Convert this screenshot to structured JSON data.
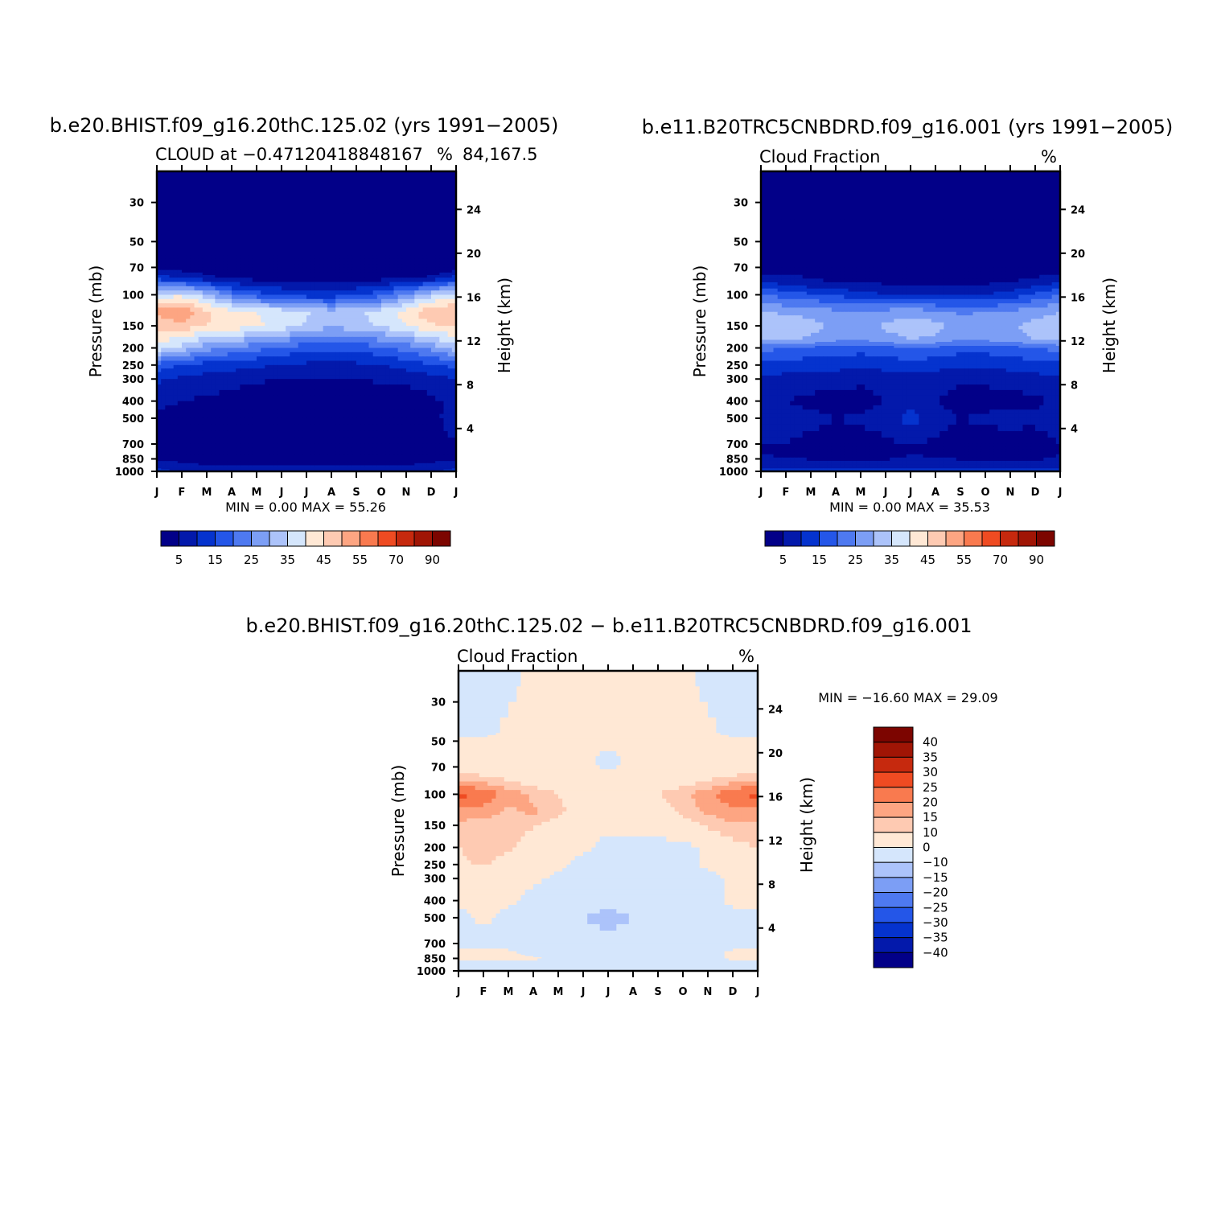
{
  "chart_data": [
    {
      "type": "heatmap",
      "id": "model1",
      "title": "b.e20.BHIST.f09_g16.20thC.125.02 (yrs 1991−2005)",
      "left_label": "CLOUD at −0.47120418848167",
      "right_label": "%",
      "overlap_label": "84,167.5",
      "ylabel": "Pressure (mb)",
      "ylabel_right": "Height (km)",
      "x_categories": [
        "J",
        "F",
        "M",
        "A",
        "M",
        "J",
        "J",
        "A",
        "S",
        "O",
        "N",
        "D",
        "J"
      ],
      "y_ticks": [
        30,
        50,
        70,
        100,
        150,
        200,
        250,
        300,
        400,
        500,
        700,
        850,
        1000
      ],
      "y_right_ticks": [
        24,
        20,
        16,
        12,
        8,
        4
      ],
      "ylim": [
        20,
        1000
      ],
      "stats": "MIN =    0.00  MAX =   55.26",
      "colorbar": {
        "labels": [
          "5",
          "15",
          "25",
          "35",
          "45",
          "55",
          "70",
          "90"
        ]
      },
      "field_rows": [
        {
          "p": 20,
          "v": [
            0,
            0,
            0,
            0,
            0,
            0,
            0,
            0,
            0,
            0,
            0,
            0,
            0
          ]
        },
        {
          "p": 60,
          "v": [
            0,
            0,
            0,
            0,
            0,
            0,
            0,
            0,
            0,
            0,
            0,
            0,
            0
          ]
        },
        {
          "p": 70,
          "v": [
            2,
            2,
            2,
            0,
            0,
            0,
            0,
            0,
            0,
            0,
            0,
            0,
            2
          ]
        },
        {
          "p": 80,
          "v": [
            12,
            10,
            6,
            4,
            3,
            3,
            3,
            3,
            3,
            3,
            4,
            6,
            12
          ]
        },
        {
          "p": 100,
          "v": [
            38,
            38,
            32,
            22,
            17,
            14,
            12,
            12,
            14,
            18,
            26,
            33,
            38
          ]
        },
        {
          "p": 125,
          "v": [
            52,
            55,
            46,
            42,
            40,
            38,
            36,
            32,
            34,
            37,
            42,
            50,
            50
          ]
        },
        {
          "p": 150,
          "v": [
            46,
            48,
            45,
            43,
            41,
            38,
            34,
            31,
            33,
            36,
            40,
            44,
            46
          ]
        },
        {
          "p": 200,
          "v": [
            38,
            33,
            27,
            24,
            22,
            19,
            17,
            16,
            17,
            19,
            22,
            27,
            33
          ]
        },
        {
          "p": 250,
          "v": [
            18,
            15,
            13,
            12,
            11,
            10,
            9,
            9,
            9,
            10,
            12,
            14,
            17
          ]
        },
        {
          "p": 300,
          "v": [
            11,
            9,
            8,
            7,
            6,
            5,
            5,
            5,
            5,
            6,
            7,
            8,
            10
          ]
        },
        {
          "p": 400,
          "v": [
            6,
            5,
            4,
            3,
            0.5,
            0.5,
            0.5,
            0.5,
            0.5,
            0.5,
            0.5,
            4,
            6
          ]
        },
        {
          "p": 500,
          "v": [
            4,
            3,
            5,
            3,
            2,
            0.5,
            0.5,
            0.5,
            0.5,
            0.5,
            0.5,
            3,
            8
          ]
        },
        {
          "p": 700,
          "v": [
            4,
            3,
            3,
            1,
            0.5,
            0.5,
            0.5,
            0.5,
            0.5,
            0.5,
            0.5,
            4,
            4
          ]
        },
        {
          "p": 850,
          "v": [
            4,
            4,
            3,
            3,
            2,
            1,
            1,
            1,
            1,
            2,
            3,
            4,
            4
          ]
        },
        {
          "p": 950,
          "v": [
            10,
            6,
            6,
            6,
            6,
            6,
            6,
            6,
            6,
            6,
            6,
            6,
            10
          ]
        },
        {
          "p": 1000,
          "v": [
            12,
            10,
            10,
            10,
            10,
            10,
            10,
            10,
            10,
            10,
            10,
            10,
            12
          ]
        }
      ]
    },
    {
      "type": "heatmap",
      "id": "model2",
      "title": "b.e11.B20TRC5CNBDRD.f09_g16.001 (yrs 1991−2005)",
      "left_label": "Cloud Fraction",
      "right_label": "%",
      "ylabel": "Pressure (mb)",
      "ylabel_right": "Height (km)",
      "x_categories": [
        "J",
        "F",
        "M",
        "A",
        "M",
        "J",
        "J",
        "A",
        "S",
        "O",
        "N",
        "D",
        "J"
      ],
      "y_ticks": [
        30,
        50,
        70,
        100,
        150,
        200,
        250,
        300,
        400,
        500,
        700,
        850,
        1000
      ],
      "y_right_ticks": [
        24,
        20,
        16,
        12,
        8,
        4
      ],
      "ylim": [
        20,
        1000
      ],
      "stats": "MIN =    0.00  MAX =   35.53",
      "colorbar": {
        "labels": [
          "5",
          "15",
          "25",
          "35",
          "45",
          "55",
          "70",
          "90"
        ]
      },
      "field_rows": [
        {
          "p": 20,
          "v": [
            0,
            0,
            0,
            0,
            0,
            0,
            0,
            0,
            0,
            0,
            0,
            0,
            0
          ]
        },
        {
          "p": 70,
          "v": [
            2,
            2,
            2,
            0,
            0,
            0,
            0,
            0,
            0,
            0,
            0,
            1,
            2
          ]
        },
        {
          "p": 85,
          "v": [
            10,
            8,
            6,
            5,
            5,
            4,
            4,
            4,
            4,
            4,
            5,
            7,
            10
          ]
        },
        {
          "p": 100,
          "v": [
            20,
            18,
            16,
            14,
            12,
            10,
            10,
            10,
            10,
            10,
            12,
            16,
            20
          ]
        },
        {
          "p": 125,
          "v": [
            30,
            29,
            28,
            26,
            25,
            27,
            28,
            26,
            24,
            25,
            26,
            28,
            30
          ]
        },
        {
          "p": 150,
          "v": [
            33,
            35,
            32,
            29,
            28,
            31,
            33,
            32,
            28,
            29,
            29,
            32,
            33
          ]
        },
        {
          "p": 180,
          "v": [
            30,
            31,
            29,
            26,
            25,
            28,
            30,
            29,
            25,
            26,
            27,
            30,
            31
          ]
        },
        {
          "p": 200,
          "v": [
            22,
            20,
            19,
            18,
            17,
            18,
            20,
            19,
            17,
            17,
            18,
            20,
            22
          ]
        },
        {
          "p": 250,
          "v": [
            14,
            13,
            12,
            12,
            11,
            12,
            13,
            12,
            11,
            11,
            12,
            13,
            14
          ]
        },
        {
          "p": 300,
          "v": [
            9,
            8,
            7,
            7,
            6,
            7,
            7,
            7,
            6,
            6,
            7,
            8,
            9
          ]
        },
        {
          "p": 400,
          "v": [
            6,
            5,
            4,
            3,
            3,
            5,
            6,
            5,
            3,
            3,
            3,
            4,
            6
          ]
        },
        {
          "p": 500,
          "v": [
            8,
            6,
            6,
            5,
            6,
            7,
            13,
            7,
            5,
            6,
            7,
            6,
            8
          ]
        },
        {
          "p": 700,
          "v": [
            5,
            5,
            4,
            3,
            3,
            4,
            5,
            4,
            3,
            3,
            2,
            3,
            5
          ]
        },
        {
          "p": 800,
          "v": [
            5,
            4,
            3,
            2,
            1,
            3,
            5,
            4,
            3,
            2,
            1,
            2,
            5
          ]
        },
        {
          "p": 950,
          "v": [
            8,
            8,
            8,
            8,
            8,
            8,
            8,
            8,
            8,
            8,
            8,
            8,
            8
          ]
        },
        {
          "p": 1000,
          "v": [
            14,
            14,
            14,
            14,
            14,
            14,
            14,
            14,
            14,
            14,
            14,
            14,
            14
          ]
        }
      ]
    },
    {
      "type": "heatmap",
      "id": "diff",
      "title": "b.e20.BHIST.f09_g16.20thC.125.02 − b.e11.B20TRC5CNBDRD.f09_g16.001",
      "left_label": "Cloud Fraction",
      "right_label": "%",
      "ylabel": "Pressure (mb)",
      "ylabel_right": "Height (km)",
      "x_categories": [
        "J",
        "F",
        "M",
        "A",
        "M",
        "J",
        "J",
        "A",
        "S",
        "O",
        "N",
        "D",
        "J"
      ],
      "y_ticks": [
        30,
        50,
        70,
        100,
        150,
        200,
        250,
        300,
        400,
        500,
        700,
        850,
        1000
      ],
      "y_right_ticks": [
        24,
        20,
        16,
        12,
        8,
        4
      ],
      "ylim": [
        20,
        1000
      ],
      "stats": "MIN = −16.60  MAX =   29.09",
      "colorbar": {
        "labels": [
          "40",
          "35",
          "30",
          "25",
          "20",
          "15",
          "10",
          "0",
          "−10",
          "−15",
          "−20",
          "−25",
          "−30",
          "−35",
          "−40"
        ]
      },
      "field_rows": [
        {
          "p": 20,
          "v": [
            -3,
            -3,
            -3,
            2,
            2,
            2,
            2,
            2,
            2,
            2,
            -3,
            -3,
            -3
          ]
        },
        {
          "p": 45,
          "v": [
            -3,
            -2,
            2,
            2,
            2,
            2,
            2,
            2,
            2,
            2,
            2,
            -2,
            -3
          ]
        },
        {
          "p": 50,
          "v": [
            2,
            2,
            2,
            2,
            2,
            2,
            2,
            2,
            2,
            2,
            2,
            2,
            2
          ]
        },
        {
          "p": 65,
          "v": [
            2,
            2,
            2,
            2,
            2,
            2,
            -3,
            2,
            2,
            2,
            2,
            2,
            2
          ]
        },
        {
          "p": 80,
          "v": [
            12,
            11,
            8,
            5,
            3,
            2,
            2,
            2,
            3,
            5,
            8,
            11,
            12
          ]
        },
        {
          "p": 100,
          "v": [
            27,
            24,
            18,
            14,
            10,
            5,
            2,
            5,
            10,
            14,
            18,
            24,
            27
          ]
        },
        {
          "p": 125,
          "v": [
            18,
            18,
            14,
            16,
            12,
            6,
            3,
            3,
            6,
            12,
            16,
            19,
            18
          ]
        },
        {
          "p": 150,
          "v": [
            14,
            12,
            13,
            11,
            6,
            4,
            2,
            2,
            4,
            7,
            11,
            14,
            14
          ]
        },
        {
          "p": 200,
          "v": [
            10,
            13,
            11,
            6,
            3,
            2,
            -3,
            -3,
            -3,
            -3,
            2,
            8,
            10
          ]
        },
        {
          "p": 250,
          "v": [
            8,
            11,
            7,
            4,
            2,
            -3,
            -3,
            -3,
            -3,
            -3,
            2,
            4,
            8
          ]
        },
        {
          "p": 300,
          "v": [
            6,
            3,
            2,
            2,
            -2,
            -3,
            -3,
            -3,
            -3,
            -3,
            -3,
            2,
            6
          ]
        },
        {
          "p": 400,
          "v": [
            2,
            2,
            2,
            -3,
            -3,
            -3,
            -3,
            -3,
            -3,
            -3,
            -3,
            2,
            2
          ]
        },
        {
          "p": 500,
          "v": [
            -3,
            2,
            -3,
            -3,
            -3,
            -10,
            -16,
            -10,
            -3,
            -3,
            -3,
            -3,
            -3
          ]
        },
        {
          "p": 700,
          "v": [
            -3,
            -3,
            -3,
            -3,
            -3,
            -3,
            -3,
            -3,
            -3,
            -3,
            -3,
            -3,
            -3
          ]
        },
        {
          "p": 800,
          "v": [
            2,
            2,
            2,
            -3,
            -3,
            -3,
            -3,
            -3,
            -3,
            -3,
            -3,
            2,
            2
          ]
        },
        {
          "p": 850,
          "v": [
            2,
            2,
            2,
            2,
            -3,
            -3,
            -3,
            -3,
            -3,
            -3,
            -3,
            2,
            2
          ]
        },
        {
          "p": 950,
          "v": [
            -8,
            -6,
            -6,
            -6,
            -6,
            -6,
            -6,
            -6,
            -6,
            -6,
            -6,
            -6,
            -8
          ]
        },
        {
          "p": 1000,
          "v": [
            -10,
            -10,
            -10,
            -10,
            -10,
            -10,
            -10,
            -10,
            -10,
            -10,
            -10,
            -10,
            -10
          ]
        }
      ]
    }
  ],
  "colors": {
    "abs_levels": [
      5,
      10,
      15,
      20,
      25,
      30,
      35,
      40,
      45,
      50,
      55,
      60,
      70,
      80,
      90
    ],
    "abs_palette": [
      "#020088",
      "#0319AB",
      "#0533CE",
      "#2456E8",
      "#4E79F0",
      "#7C9EF5",
      "#ACC3FA",
      "#D5E6FC",
      "#FFE8D5",
      "#FECAB2",
      "#FDA582",
      "#F97A4F",
      "#EF4B22",
      "#C6290E",
      "#A01505",
      "#7C0500"
    ],
    "diff_levels": [
      -40,
      -35,
      -30,
      -25,
      -20,
      -15,
      -10,
      0,
      10,
      15,
      20,
      25,
      30,
      35,
      40
    ],
    "diff_palette": [
      "#020088",
      "#0319AB",
      "#0533CE",
      "#2456E8",
      "#4E79F0",
      "#7C9EF5",
      "#ACC3FA",
      "#D5E6FC",
      "#FFE8D5",
      "#FECAB2",
      "#FDA582",
      "#F97A4F",
      "#EF4B22",
      "#C6290E",
      "#A01505",
      "#7C0500"
    ]
  }
}
